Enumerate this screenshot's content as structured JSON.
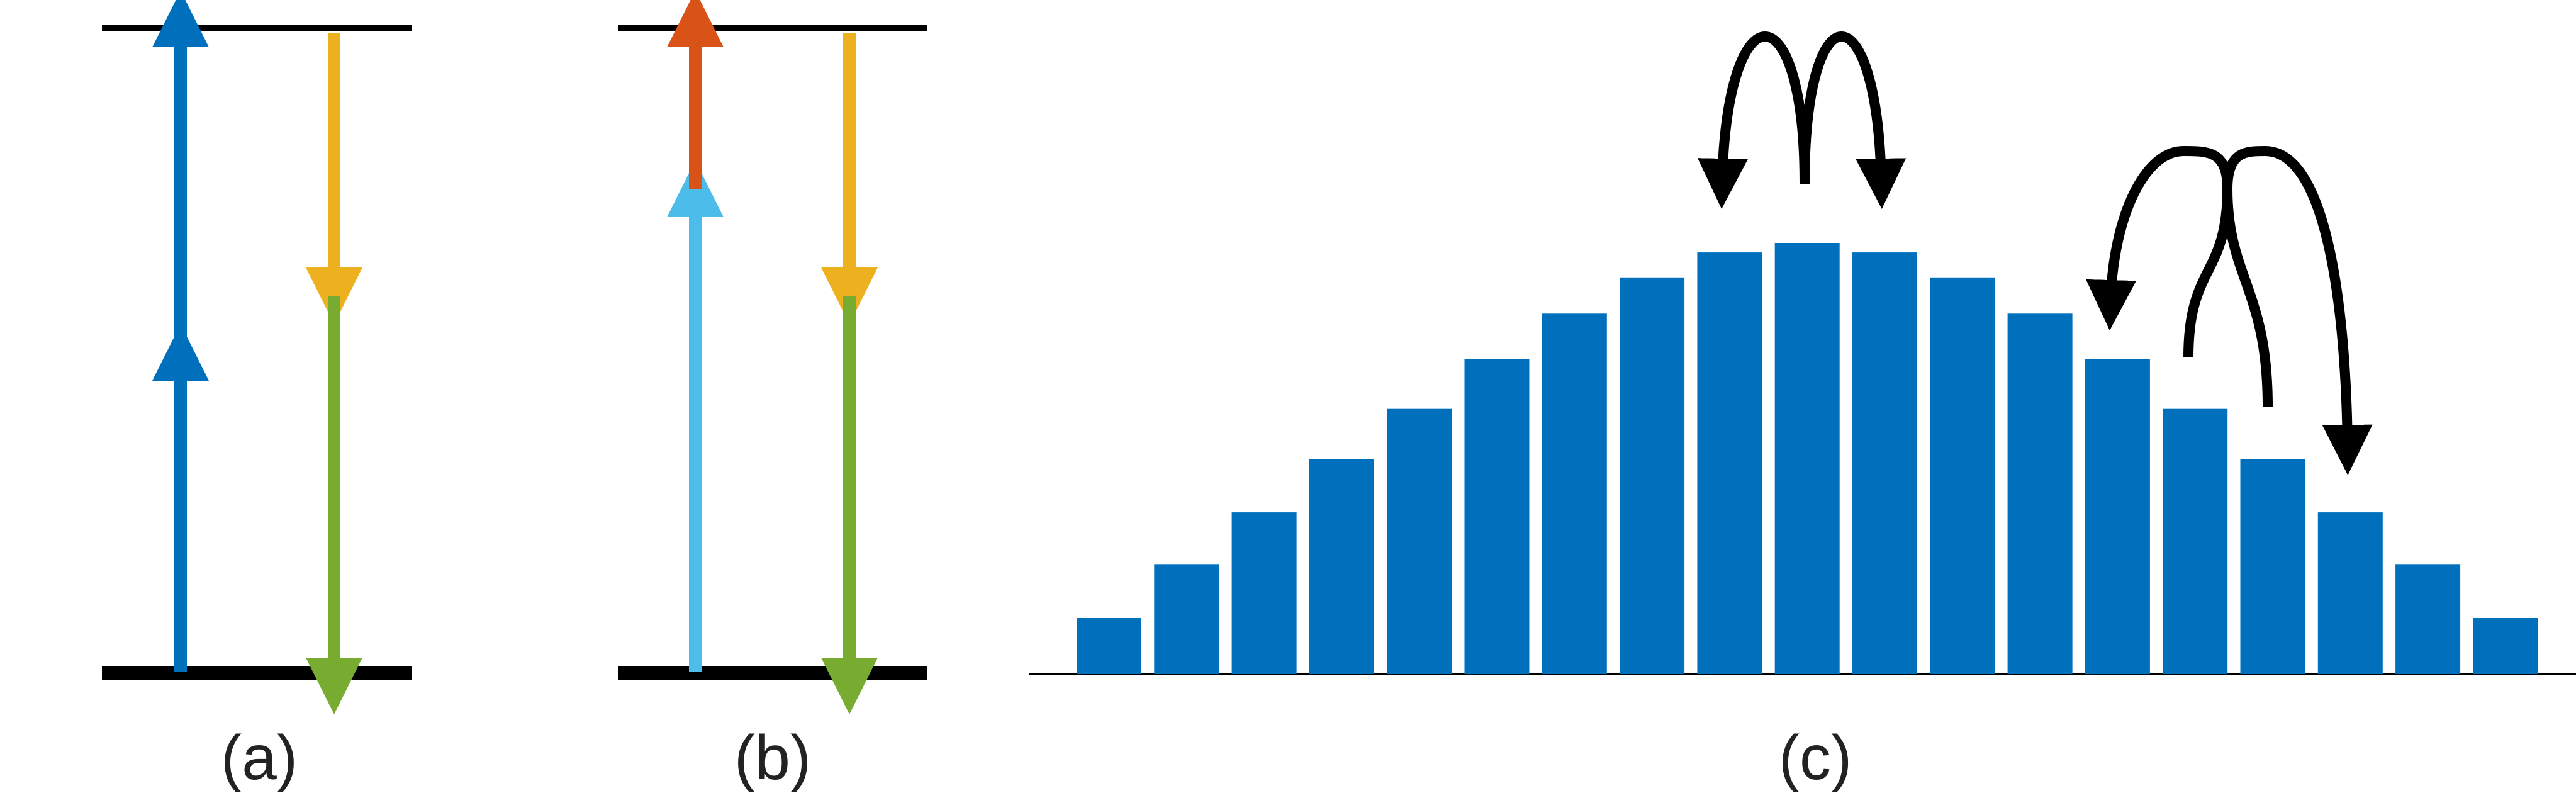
{
  "colors": {
    "blue": "#0070bd",
    "light_blue": "#4cbceb",
    "orange": "#d95319",
    "yellow": "#edb120",
    "green": "#77ac30",
    "black": "#000000",
    "bar": "#0070bd"
  },
  "panels": [
    {
      "label": "(a)"
    },
    {
      "label": "(b)"
    },
    {
      "label": "(c)"
    }
  ],
  "panel_c": {
    "bar_values": [
      0.13,
      0.255,
      0.375,
      0.498,
      0.615,
      0.73,
      0.836,
      0.92,
      0.978,
      1.0,
      0.978,
      0.92,
      0.836,
      0.73,
      0.615,
      0.498,
      0.375,
      0.255,
      0.13
    ]
  }
}
